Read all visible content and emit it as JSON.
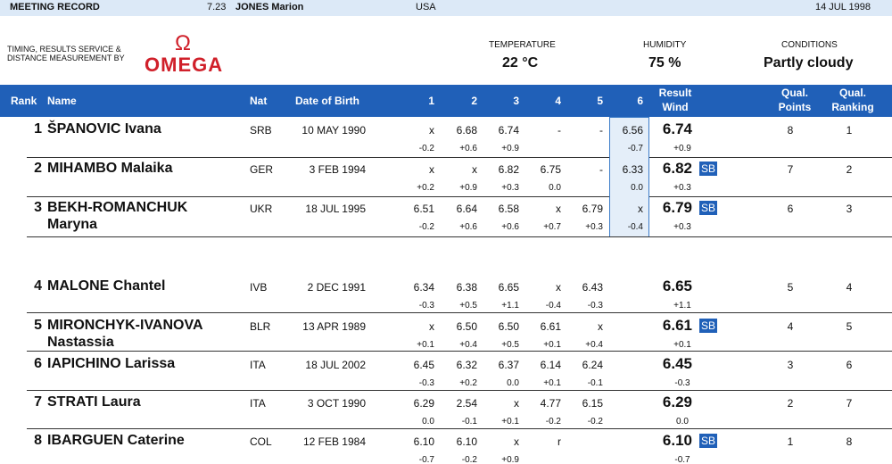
{
  "top_bar": {
    "label": "MEETING RECORD",
    "mark": "7.23",
    "holder": "JONES Marion",
    "country": "USA",
    "date": "14 JUL 1998"
  },
  "header": {
    "timing_text": [
      "TIMING, RESULTS SERVICE &",
      "DISTANCE MEASUREMENT BY"
    ],
    "logo_symbol": "Ω",
    "logo_text": "OMEGA",
    "temperature_label": "TEMPERATURE",
    "temperature": "22 °C",
    "humidity_label": "HUMIDITY",
    "humidity": "75 %",
    "conditions_label": "CONDITIONS",
    "conditions": "Partly cloudy"
  },
  "table": {
    "columns": {
      "rank": "Rank",
      "name": "Name",
      "nat": "Nat",
      "dob": "Date of Birth",
      "attempts": [
        "1",
        "2",
        "3",
        "4",
        "5",
        "6"
      ],
      "result": "Result",
      "wind": "Wind",
      "qual_points": [
        "Qual.",
        "Points"
      ],
      "qual_ranking": [
        "Qual.",
        "Ranking"
      ]
    },
    "rows": [
      {
        "rank": 1,
        "name": [
          "ŠPANOVIC Ivana"
        ],
        "nat": "SRB",
        "dob": "10 MAY 1990",
        "attempts": [
          "x",
          "6.68",
          "6.74",
          "-",
          "-",
          "6.56"
        ],
        "winds": [
          "-0.2",
          "+0.6",
          "+0.9",
          null,
          null,
          "-0.7"
        ],
        "result": "6.74",
        "result_wind": "+0.9",
        "qual_points": 8,
        "qual_ranking": 1
      },
      {
        "rank": 2,
        "name": [
          "MIHAMBO Malaika"
        ],
        "nat": "GER",
        "dob": "3 FEB 1994",
        "attempts": [
          "x",
          "x",
          "6.82",
          "6.75",
          "-",
          "6.33"
        ],
        "winds": [
          "+0.2",
          "+0.9",
          "+0.3",
          "0.0",
          null,
          "0.0"
        ],
        "result": "6.82",
        "badge": "SB",
        "result_wind": "+0.3",
        "qual_points": 7,
        "qual_ranking": 2
      },
      {
        "rank": 3,
        "name": [
          "BEKH-ROMANCHUK",
          "Maryna"
        ],
        "nat": "UKR",
        "dob": "18 JUL 1995",
        "attempts": [
          "6.51",
          "6.64",
          "6.58",
          "x",
          "6.79",
          "x"
        ],
        "winds": [
          "-0.2",
          "+0.6",
          "+0.6",
          "+0.7",
          "+0.3",
          "-0.4"
        ],
        "result": "6.79",
        "badge": "SB",
        "result_wind": "+0.3",
        "qual_points": 6,
        "qual_ranking": 3
      },
      {
        "rank": 4,
        "name": [
          "MALONE Chantel"
        ],
        "nat": "IVB",
        "dob": "2 DEC 1991",
        "attempts": [
          "6.34",
          "6.38",
          "6.65",
          "x",
          "6.43",
          null
        ],
        "winds": [
          "-0.3",
          "+0.5",
          "+1.1",
          "-0.4",
          "-0.3",
          null
        ],
        "result": "6.65",
        "result_wind": "+1.1",
        "qual_points": 5,
        "qual_ranking": 4
      },
      {
        "rank": 5,
        "name": [
          "MIRONCHYK-IVANOVA",
          "Nastassia"
        ],
        "nat": "BLR",
        "dob": "13 APR 1989",
        "attempts": [
          "x",
          "6.50",
          "6.50",
          "6.61",
          "x",
          null
        ],
        "winds": [
          "+0.1",
          "+0.4",
          "+0.5",
          "+0.1",
          "+0.4",
          null
        ],
        "result": "6.61",
        "badge": "SB",
        "result_wind": "+0.1",
        "qual_points": 4,
        "qual_ranking": 5
      },
      {
        "rank": 6,
        "name": [
          "IAPICHINO Larissa"
        ],
        "nat": "ITA",
        "dob": "18 JUL 2002",
        "attempts": [
          "6.45",
          "6.32",
          "6.37",
          "6.14",
          "6.24",
          null
        ],
        "winds": [
          "-0.3",
          "+0.2",
          "0.0",
          "+0.1",
          "-0.1",
          null
        ],
        "result": "6.45",
        "result_wind": "-0.3",
        "qual_points": 3,
        "qual_ranking": 6
      },
      {
        "rank": 7,
        "name": [
          "STRATI Laura"
        ],
        "nat": "ITA",
        "dob": "3 OCT 1990",
        "attempts": [
          "6.29",
          "2.54",
          "x",
          "4.77",
          "6.15",
          null
        ],
        "winds": [
          "0.0",
          "-0.1",
          "+0.1",
          "-0.2",
          "-0.2",
          null
        ],
        "result": "6.29",
        "result_wind": "0.0",
        "qual_points": 2,
        "qual_ranking": 7
      },
      {
        "rank": 8,
        "name": [
          "IBARGUEN Caterine"
        ],
        "nat": "COL",
        "dob": "12 FEB 1984",
        "attempts": [
          "6.10",
          "6.10",
          "x",
          "r",
          null,
          null
        ],
        "winds": [
          "-0.7",
          "-0.2",
          "+0.9",
          null,
          null,
          null
        ],
        "result": "6.10",
        "badge": "SB",
        "result_wind": "-0.7",
        "qual_points": 1,
        "qual_ranking": 8
      }
    ]
  }
}
